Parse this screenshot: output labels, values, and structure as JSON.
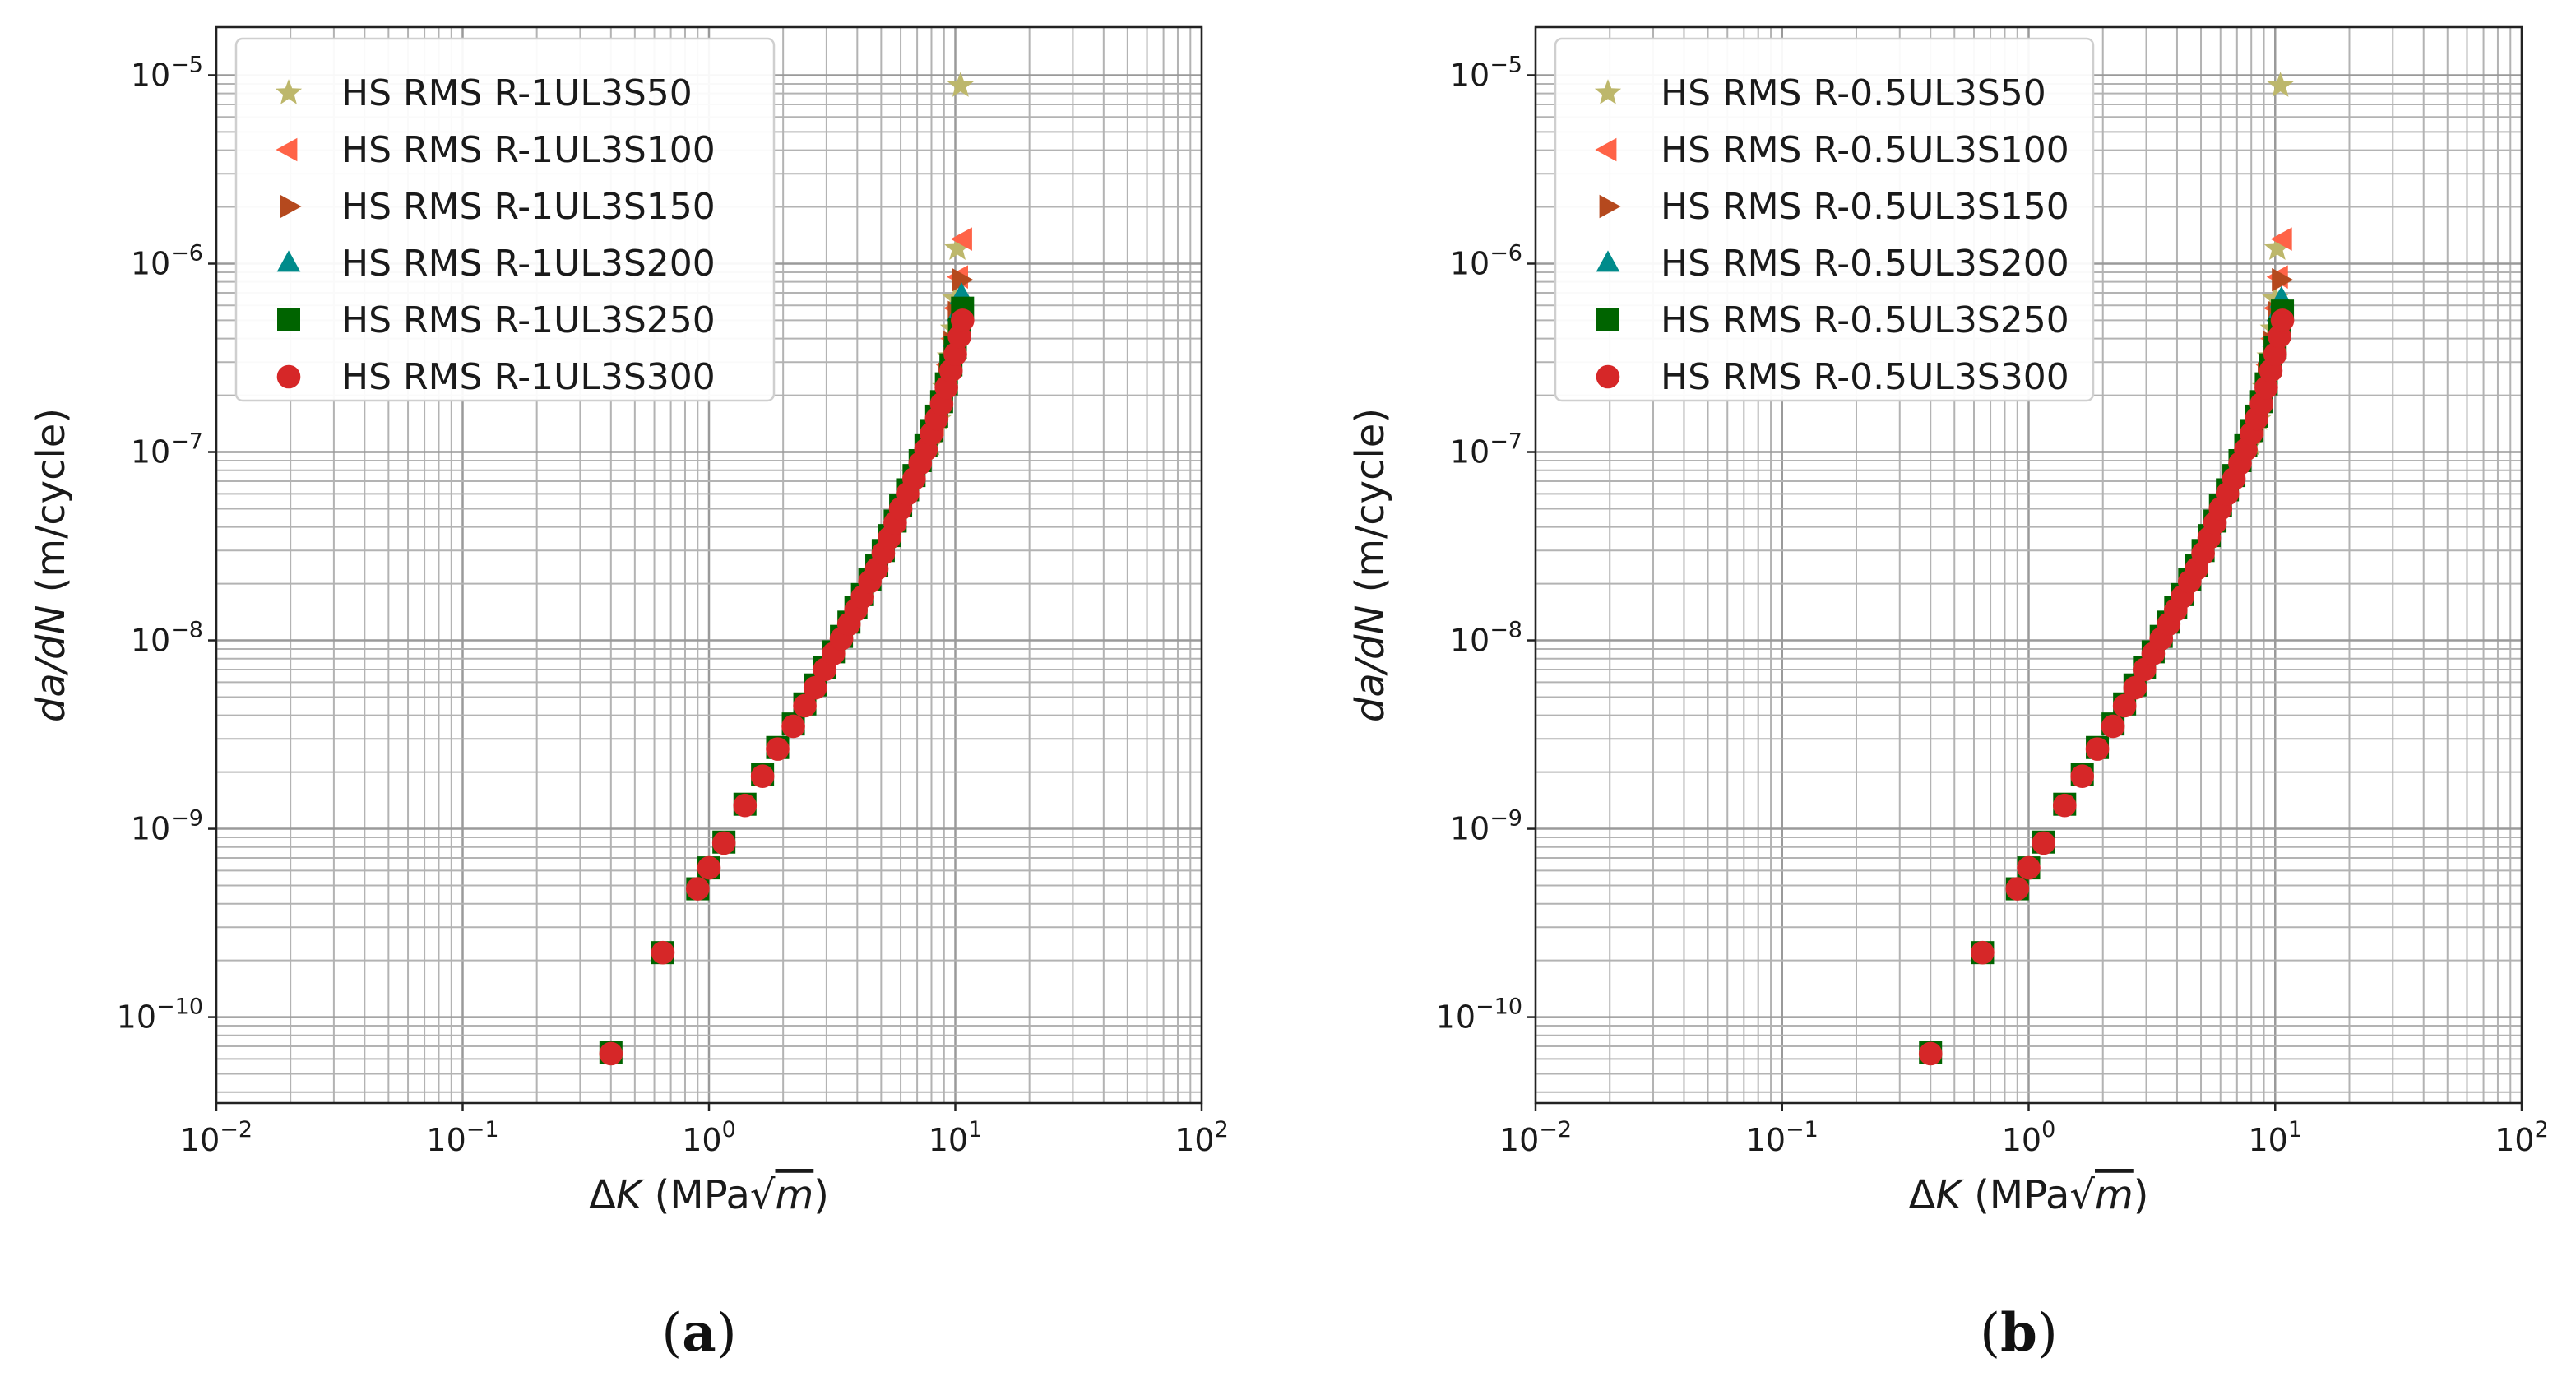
{
  "chart_data": [
    {
      "type": "scatter",
      "panel": "a",
      "caption": {
        "open": "(",
        "letter": "a",
        "close": ")"
      },
      "xscale": "log",
      "yscale": "log",
      "xlim": [
        0.01,
        100
      ],
      "ylim": [
        3.5e-11,
        1.8e-05
      ],
      "grid": true,
      "legend_position": "top-left",
      "xlabel": {
        "pre": "Δ",
        "var": "K",
        "unit": " (MPa√",
        "unit_var": "m",
        "close": ")"
      },
      "ylabel": {
        "var": "da/dN",
        "unit": " (m/cycle)"
      },
      "xticks": [
        {
          "value": 0.01,
          "base": "10",
          "exp": "−2"
        },
        {
          "value": 0.1,
          "base": "10",
          "exp": "−1"
        },
        {
          "value": 1,
          "base": "10",
          "exp": "0"
        },
        {
          "value": 10,
          "base": "10",
          "exp": "1"
        },
        {
          "value": 100,
          "base": "10",
          "exp": "2"
        }
      ],
      "yticks": [
        {
          "value": 1e-10,
          "base": "10",
          "exp": "−10"
        },
        {
          "value": 1e-09,
          "base": "10",
          "exp": "−9"
        },
        {
          "value": 1e-08,
          "base": "10",
          "exp": "−8"
        },
        {
          "value": 1e-07,
          "base": "10",
          "exp": "−7"
        },
        {
          "value": 1e-06,
          "base": "10",
          "exp": "−6"
        },
        {
          "value": 1e-05,
          "base": "10",
          "exp": "−5"
        }
      ],
      "series": [
        {
          "name": "HS RMS R-1UL3S50",
          "marker": "star",
          "color": "#bdb76b",
          "x": [
            8.0,
            8.6,
            9.1,
            9.5,
            9.8,
            10.0,
            10.2,
            10.5
          ],
          "y": [
            1.1e-07,
            1.5e-07,
            2.2e-07,
            3.2e-07,
            4.5e-07,
            6.5e-07,
            1.2e-06,
            8.8e-06
          ]
        },
        {
          "name": "HS RMS R-1UL3S100",
          "marker": "triangle-left",
          "color": "#ff6347",
          "x": [
            8.3,
            8.9,
            9.4,
            9.8,
            10.1,
            10.4,
            10.8
          ],
          "y": [
            1.4e-07,
            2e-07,
            2.9e-07,
            4e-07,
            5.8e-07,
            8.5e-07,
            1.35e-06
          ]
        },
        {
          "name": "HS RMS R-1UL3S150",
          "marker": "triangle-right",
          "color": "#b5491e",
          "x": [
            8.6,
            9.2,
            9.7,
            10.1,
            10.5
          ],
          "y": [
            1.7e-07,
            2.6e-07,
            3.8e-07,
            5.5e-07,
            8.2e-07
          ]
        },
        {
          "name": "HS RMS R-1UL3S200",
          "marker": "triangle-up",
          "color": "#008b8b",
          "x": [
            8.8,
            9.4,
            9.9,
            10.3,
            10.6
          ],
          "y": [
            1.9e-07,
            2.8e-07,
            4e-07,
            5.5e-07,
            6.8e-07
          ]
        },
        {
          "name": "HS RMS R-1UL3S250",
          "marker": "square",
          "color": "#006400",
          "x": [
            0.4,
            0.65,
            0.9,
            1.0,
            1.15,
            1.4,
            1.65,
            1.9,
            2.2,
            2.45,
            2.7,
            2.95,
            3.2,
            3.45,
            3.7,
            3.95,
            4.2,
            4.5,
            4.8,
            5.1,
            5.4,
            5.7,
            6.0,
            6.4,
            6.8,
            7.2,
            7.6,
            8.0,
            8.4,
            8.8,
            9.2,
            9.6,
            10.0,
            10.4,
            10.7
          ],
          "y": [
            6.5e-11,
            2.2e-10,
            4.8e-10,
            6.2e-10,
            8.5e-10,
            1.35e-09,
            1.95e-09,
            2.7e-09,
            3.6e-09,
            4.6e-09,
            5.8e-09,
            7.2e-09,
            8.7e-09,
            1.05e-08,
            1.25e-08,
            1.5e-08,
            1.75e-08,
            2.1e-08,
            2.5e-08,
            3e-08,
            3.6e-08,
            4.3e-08,
            5.2e-08,
            6.3e-08,
            7.5e-08,
            9e-08,
            1.08e-07,
            1.3e-07,
            1.55e-07,
            1.85e-07,
            2.3e-07,
            2.9e-07,
            3.6e-07,
            4.5e-07,
            5.8e-07
          ]
        },
        {
          "name": "HS RMS R-1UL3S300",
          "marker": "circle",
          "color": "#d62728",
          "x": [
            0.4,
            0.65,
            0.9,
            1.0,
            1.15,
            1.4,
            1.65,
            1.9,
            2.2,
            2.45,
            2.7,
            2.95,
            3.2,
            3.45,
            3.7,
            3.95,
            4.2,
            4.5,
            4.8,
            5.1,
            5.4,
            5.7,
            6.0,
            6.4,
            6.8,
            7.2,
            7.6,
            8.0,
            8.4,
            8.8,
            9.2,
            9.6,
            10.0,
            10.4,
            10.7
          ],
          "y": [
            6.4e-11,
            2.2e-10,
            4.8e-10,
            6.2e-10,
            8.4e-10,
            1.33e-09,
            1.9e-09,
            2.65e-09,
            3.5e-09,
            4.5e-09,
            5.6e-09,
            7e-09,
            8.5e-09,
            1.02e-08,
            1.22e-08,
            1.45e-08,
            1.7e-08,
            2.05e-08,
            2.4e-08,
            2.9e-08,
            3.5e-08,
            4.2e-08,
            5e-08,
            6e-08,
            7.2e-08,
            8.7e-08,
            1.03e-07,
            1.25e-07,
            1.5e-07,
            1.8e-07,
            2.2e-07,
            2.7e-07,
            3.3e-07,
            4.1e-07,
            5e-07
          ]
        }
      ]
    },
    {
      "type": "scatter",
      "panel": "b",
      "caption": {
        "open": "(",
        "letter": "b",
        "close": ")"
      },
      "xscale": "log",
      "yscale": "log",
      "xlim": [
        0.01,
        100
      ],
      "ylim": [
        3.5e-11,
        1.8e-05
      ],
      "grid": true,
      "legend_position": "top-left",
      "xlabel": {
        "pre": "Δ",
        "var": "K",
        "unit": " (MPa√",
        "unit_var": "m",
        "close": ")"
      },
      "ylabel": {
        "var": "da/dN",
        "unit": " (m/cycle)"
      },
      "xticks": [
        {
          "value": 0.01,
          "base": "10",
          "exp": "−2"
        },
        {
          "value": 0.1,
          "base": "10",
          "exp": "−1"
        },
        {
          "value": 1,
          "base": "10",
          "exp": "0"
        },
        {
          "value": 10,
          "base": "10",
          "exp": "1"
        },
        {
          "value": 100,
          "base": "10",
          "exp": "2"
        }
      ],
      "yticks": [
        {
          "value": 1e-10,
          "base": "10",
          "exp": "−10"
        },
        {
          "value": 1e-09,
          "base": "10",
          "exp": "−9"
        },
        {
          "value": 1e-08,
          "base": "10",
          "exp": "−8"
        },
        {
          "value": 1e-07,
          "base": "10",
          "exp": "−7"
        },
        {
          "value": 1e-06,
          "base": "10",
          "exp": "−6"
        },
        {
          "value": 1e-05,
          "base": "10",
          "exp": "−5"
        }
      ],
      "series": [
        {
          "name": "HS RMS R-0.5UL3S50",
          "marker": "star",
          "color": "#bdb76b",
          "x": [
            8.0,
            8.6,
            9.1,
            9.5,
            9.8,
            10.0,
            10.2,
            10.5
          ],
          "y": [
            1.1e-07,
            1.5e-07,
            2.2e-07,
            3.2e-07,
            4.5e-07,
            6.5e-07,
            1.2e-06,
            8.8e-06
          ]
        },
        {
          "name": "HS RMS R-0.5UL3S100",
          "marker": "triangle-left",
          "color": "#ff6347",
          "x": [
            8.3,
            8.9,
            9.4,
            9.8,
            10.1,
            10.4,
            10.8
          ],
          "y": [
            1.4e-07,
            2e-07,
            2.9e-07,
            4e-07,
            5.8e-07,
            8.5e-07,
            1.35e-06
          ]
        },
        {
          "name": "HS RMS R-0.5UL3S150",
          "marker": "triangle-right",
          "color": "#b5491e",
          "x": [
            8.6,
            9.2,
            9.7,
            10.1,
            10.5
          ],
          "y": [
            1.7e-07,
            2.6e-07,
            3.8e-07,
            5.5e-07,
            8.2e-07
          ]
        },
        {
          "name": "HS RMS R-0.5UL3S200",
          "marker": "triangle-up",
          "color": "#008b8b",
          "x": [
            8.8,
            9.4,
            9.9,
            10.3,
            10.6
          ],
          "y": [
            1.9e-07,
            2.8e-07,
            4e-07,
            5.5e-07,
            6.5e-07
          ]
        },
        {
          "name": "HS RMS R-0.5UL3S250",
          "marker": "square",
          "color": "#006400",
          "x": [
            0.4,
            0.65,
            0.9,
            1.0,
            1.15,
            1.4,
            1.65,
            1.9,
            2.2,
            2.45,
            2.7,
            2.95,
            3.2,
            3.45,
            3.7,
            3.95,
            4.2,
            4.5,
            4.8,
            5.1,
            5.4,
            5.7,
            6.0,
            6.4,
            6.8,
            7.2,
            7.6,
            8.0,
            8.4,
            8.8,
            9.2,
            9.6,
            10.0,
            10.4,
            10.7
          ],
          "y": [
            6.5e-11,
            2.2e-10,
            4.8e-10,
            6.2e-10,
            8.5e-10,
            1.35e-09,
            1.95e-09,
            2.7e-09,
            3.6e-09,
            4.6e-09,
            5.8e-09,
            7.2e-09,
            8.7e-09,
            1.05e-08,
            1.25e-08,
            1.5e-08,
            1.75e-08,
            2.1e-08,
            2.5e-08,
            3e-08,
            3.6e-08,
            4.3e-08,
            5.2e-08,
            6.3e-08,
            7.5e-08,
            9e-08,
            1.08e-07,
            1.3e-07,
            1.55e-07,
            1.85e-07,
            2.3e-07,
            2.9e-07,
            3.6e-07,
            4.5e-07,
            5.6e-07
          ]
        },
        {
          "name": "HS RMS R-0.5UL3S300",
          "marker": "circle",
          "color": "#d62728",
          "x": [
            0.4,
            0.65,
            0.9,
            1.0,
            1.15,
            1.4,
            1.65,
            1.9,
            2.2,
            2.45,
            2.7,
            2.95,
            3.2,
            3.45,
            3.7,
            3.95,
            4.2,
            4.5,
            4.8,
            5.1,
            5.4,
            5.7,
            6.0,
            6.4,
            6.8,
            7.2,
            7.6,
            8.0,
            8.4,
            8.8,
            9.2,
            9.6,
            10.0,
            10.4,
            10.7
          ],
          "y": [
            6.4e-11,
            2.2e-10,
            4.8e-10,
            6.2e-10,
            8.4e-10,
            1.33e-09,
            1.9e-09,
            2.65e-09,
            3.5e-09,
            4.5e-09,
            5.6e-09,
            7e-09,
            8.5e-09,
            1.02e-08,
            1.22e-08,
            1.45e-08,
            1.7e-08,
            2.05e-08,
            2.4e-08,
            2.9e-08,
            3.5e-08,
            4.2e-08,
            5e-08,
            6e-08,
            7.2e-08,
            8.7e-08,
            1.03e-07,
            1.25e-07,
            1.5e-07,
            1.8e-07,
            2.2e-07,
            2.7e-07,
            3.3e-07,
            4.1e-07,
            5e-07
          ]
        }
      ]
    }
  ]
}
